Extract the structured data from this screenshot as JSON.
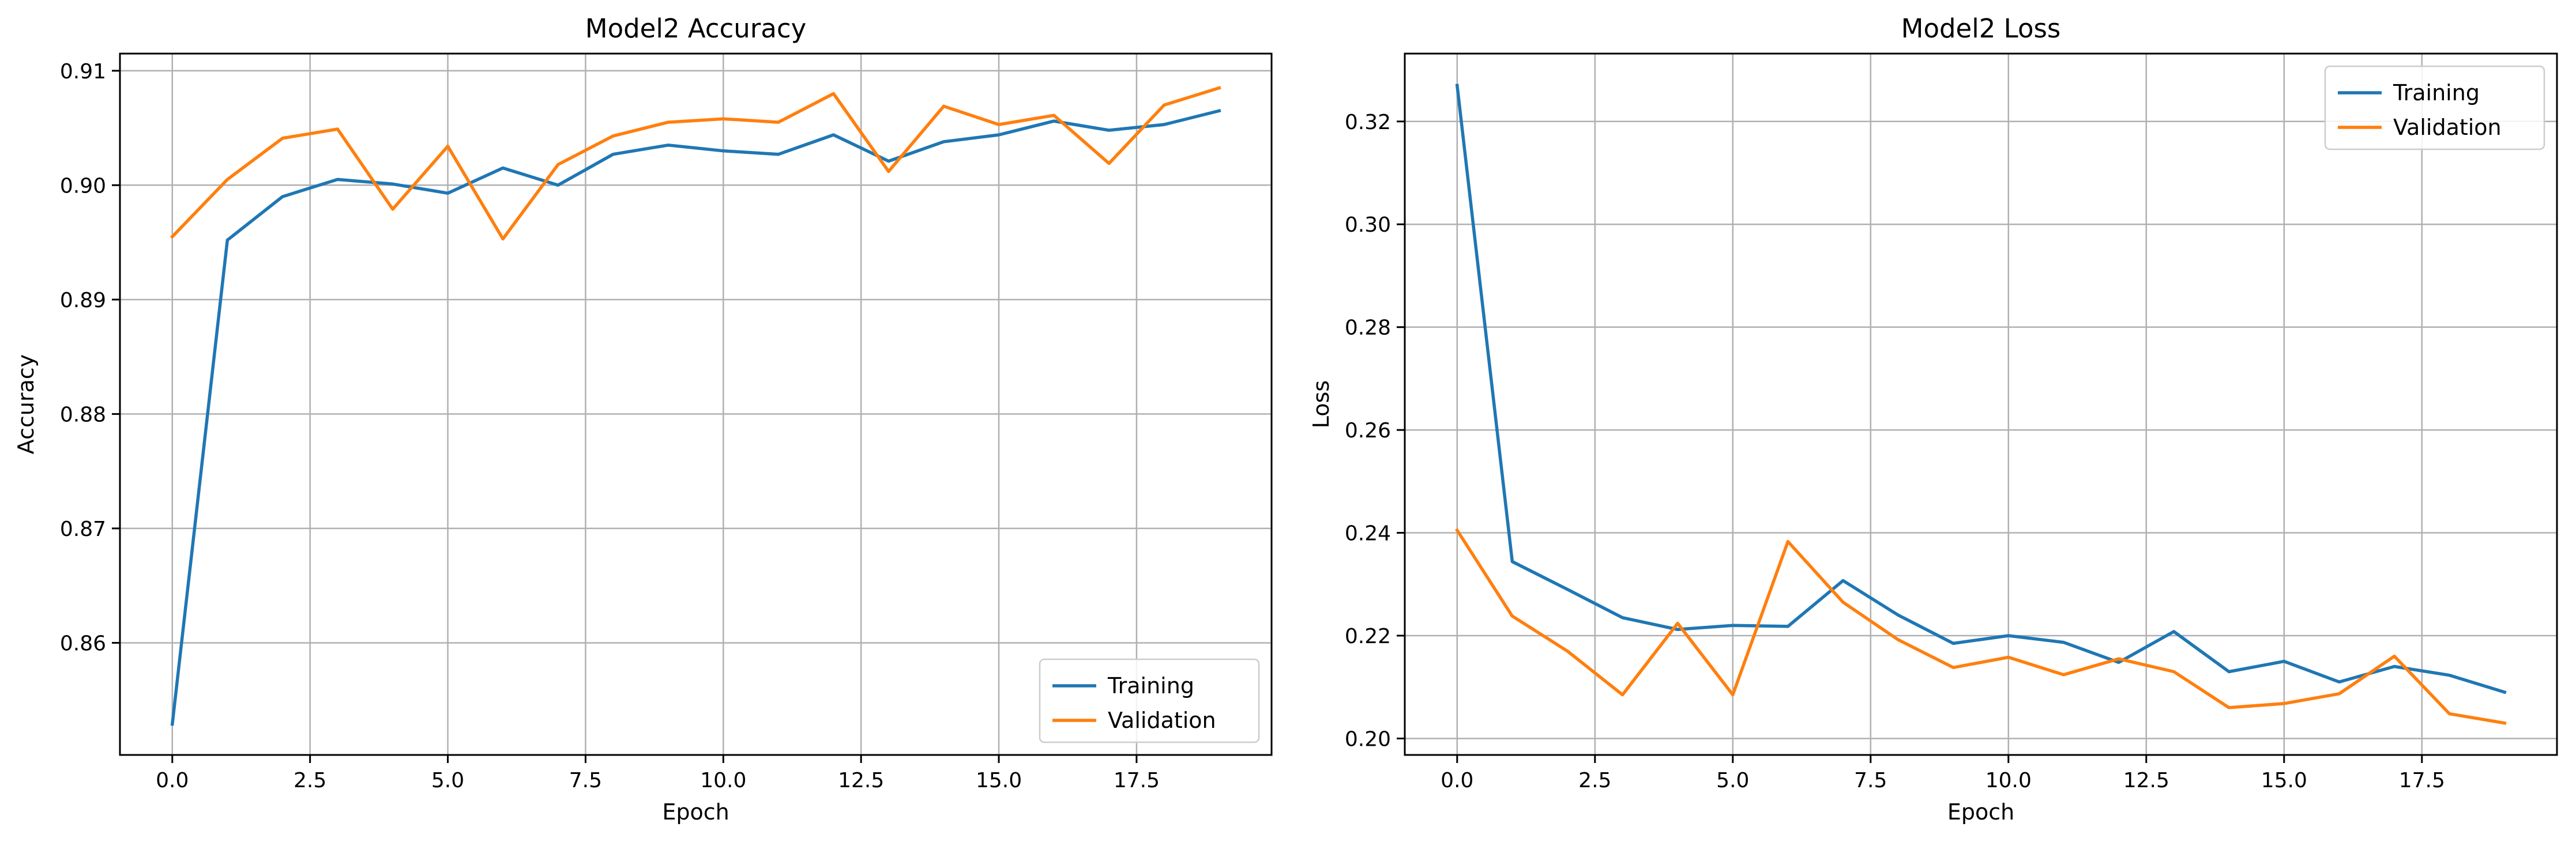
{
  "chart_data": [
    {
      "type": "line",
      "title": "Model2 Accuracy",
      "xlabel": "Epoch",
      "ylabel": "Accuracy",
      "xlim": [
        -0.95,
        19.95
      ],
      "ylim": [
        0.8502,
        0.9115
      ],
      "xticks": [
        0.0,
        2.5,
        5.0,
        7.5,
        10.0,
        12.5,
        15.0,
        17.5
      ],
      "xtick_labels": [
        "0.0",
        "2.5",
        "5.0",
        "7.5",
        "10.0",
        "12.5",
        "15.0",
        "17.5"
      ],
      "yticks": [
        0.86,
        0.87,
        0.88,
        0.89,
        0.9,
        0.91
      ],
      "ytick_labels": [
        "0.86",
        "0.87",
        "0.88",
        "0.89",
        "0.90",
        "0.91"
      ],
      "grid": true,
      "legend_position": "lower-right",
      "x": [
        0,
        1,
        2,
        3,
        4,
        5,
        6,
        7,
        8,
        9,
        10,
        11,
        12,
        13,
        14,
        15,
        16,
        17,
        18,
        19
      ],
      "series": [
        {
          "name": "Training",
          "color": "#1f77b4",
          "values": [
            0.8529,
            0.8952,
            0.899,
            0.9005,
            0.9001,
            0.8993,
            0.9015,
            0.9,
            0.9027,
            0.9035,
            0.903,
            0.9027,
            0.9044,
            0.9021,
            0.9038,
            0.9044,
            0.9056,
            0.9048,
            0.9053,
            0.9065
          ]
        },
        {
          "name": "Validation",
          "color": "#ff7f0e",
          "values": [
            0.8955,
            0.9005,
            0.9041,
            0.9049,
            0.8979,
            0.9034,
            0.8953,
            0.9018,
            0.9043,
            0.9055,
            0.9058,
            0.9055,
            0.908,
            0.9012,
            0.9069,
            0.9053,
            0.9061,
            0.9019,
            0.907,
            0.9085
          ]
        }
      ]
    },
    {
      "type": "line",
      "title": "Model2 Loss",
      "xlabel": "Epoch",
      "ylabel": "Loss",
      "xlim": [
        -0.95,
        19.95
      ],
      "ylim": [
        0.1968,
        0.3332
      ],
      "xticks": [
        0.0,
        2.5,
        5.0,
        7.5,
        10.0,
        12.5,
        15.0,
        17.5
      ],
      "xtick_labels": [
        "0.0",
        "2.5",
        "5.0",
        "7.5",
        "10.0",
        "12.5",
        "15.0",
        "17.5"
      ],
      "yticks": [
        0.2,
        0.22,
        0.24,
        0.26,
        0.28,
        0.3,
        0.32
      ],
      "ytick_labels": [
        "0.20",
        "0.22",
        "0.24",
        "0.26",
        "0.28",
        "0.30",
        "0.32"
      ],
      "grid": true,
      "legend_position": "upper-right",
      "x": [
        0,
        1,
        2,
        3,
        4,
        5,
        6,
        7,
        8,
        9,
        10,
        11,
        12,
        13,
        14,
        15,
        16,
        17,
        18,
        19
      ],
      "series": [
        {
          "name": "Training",
          "color": "#1f77b4",
          "values": [
            0.327,
            0.2344,
            0.229,
            0.2235,
            0.2212,
            0.222,
            0.2218,
            0.2307,
            0.224,
            0.2185,
            0.22,
            0.2187,
            0.2148,
            0.2208,
            0.213,
            0.215,
            0.211,
            0.214,
            0.2123,
            0.209
          ]
        },
        {
          "name": "Validation",
          "color": "#ff7f0e",
          "values": [
            0.2405,
            0.2238,
            0.217,
            0.2085,
            0.2224,
            0.2085,
            0.2383,
            0.2265,
            0.2192,
            0.2138,
            0.2158,
            0.2124,
            0.2155,
            0.213,
            0.206,
            0.2068,
            0.2087,
            0.216,
            0.2048,
            0.203
          ]
        }
      ]
    }
  ]
}
